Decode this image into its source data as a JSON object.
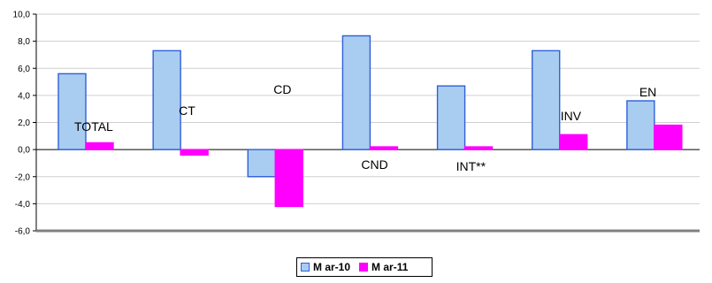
{
  "chart_data": {
    "type": "bar",
    "categories": [
      "TOTAL",
      "CT",
      "CD",
      "CND",
      "INT**",
      "INV",
      "EN"
    ],
    "series": [
      {
        "name": "M ar-10",
        "values": [
          5.6,
          7.3,
          -2.0,
          8.4,
          4.7,
          7.3,
          3.6
        ],
        "color": "#a9cdf0",
        "border": "#2f5fd8"
      },
      {
        "name": "M ar-11",
        "values": [
          0.5,
          -0.4,
          -4.2,
          0.2,
          0.2,
          1.1,
          1.8
        ],
        "color": "#ff00ff",
        "border": "#ff00ff"
      }
    ],
    "ylim": [
      -6,
      10
    ],
    "yticks": [
      "10,0",
      "8,0",
      "6,0",
      "4,0",
      "2,0",
      "0,0",
      "-2,0",
      "-4,0",
      "-6,0"
    ],
    "grid": true,
    "legend_position": "bottom-center",
    "title": "",
    "xlabel": "",
    "ylabel": ""
  }
}
